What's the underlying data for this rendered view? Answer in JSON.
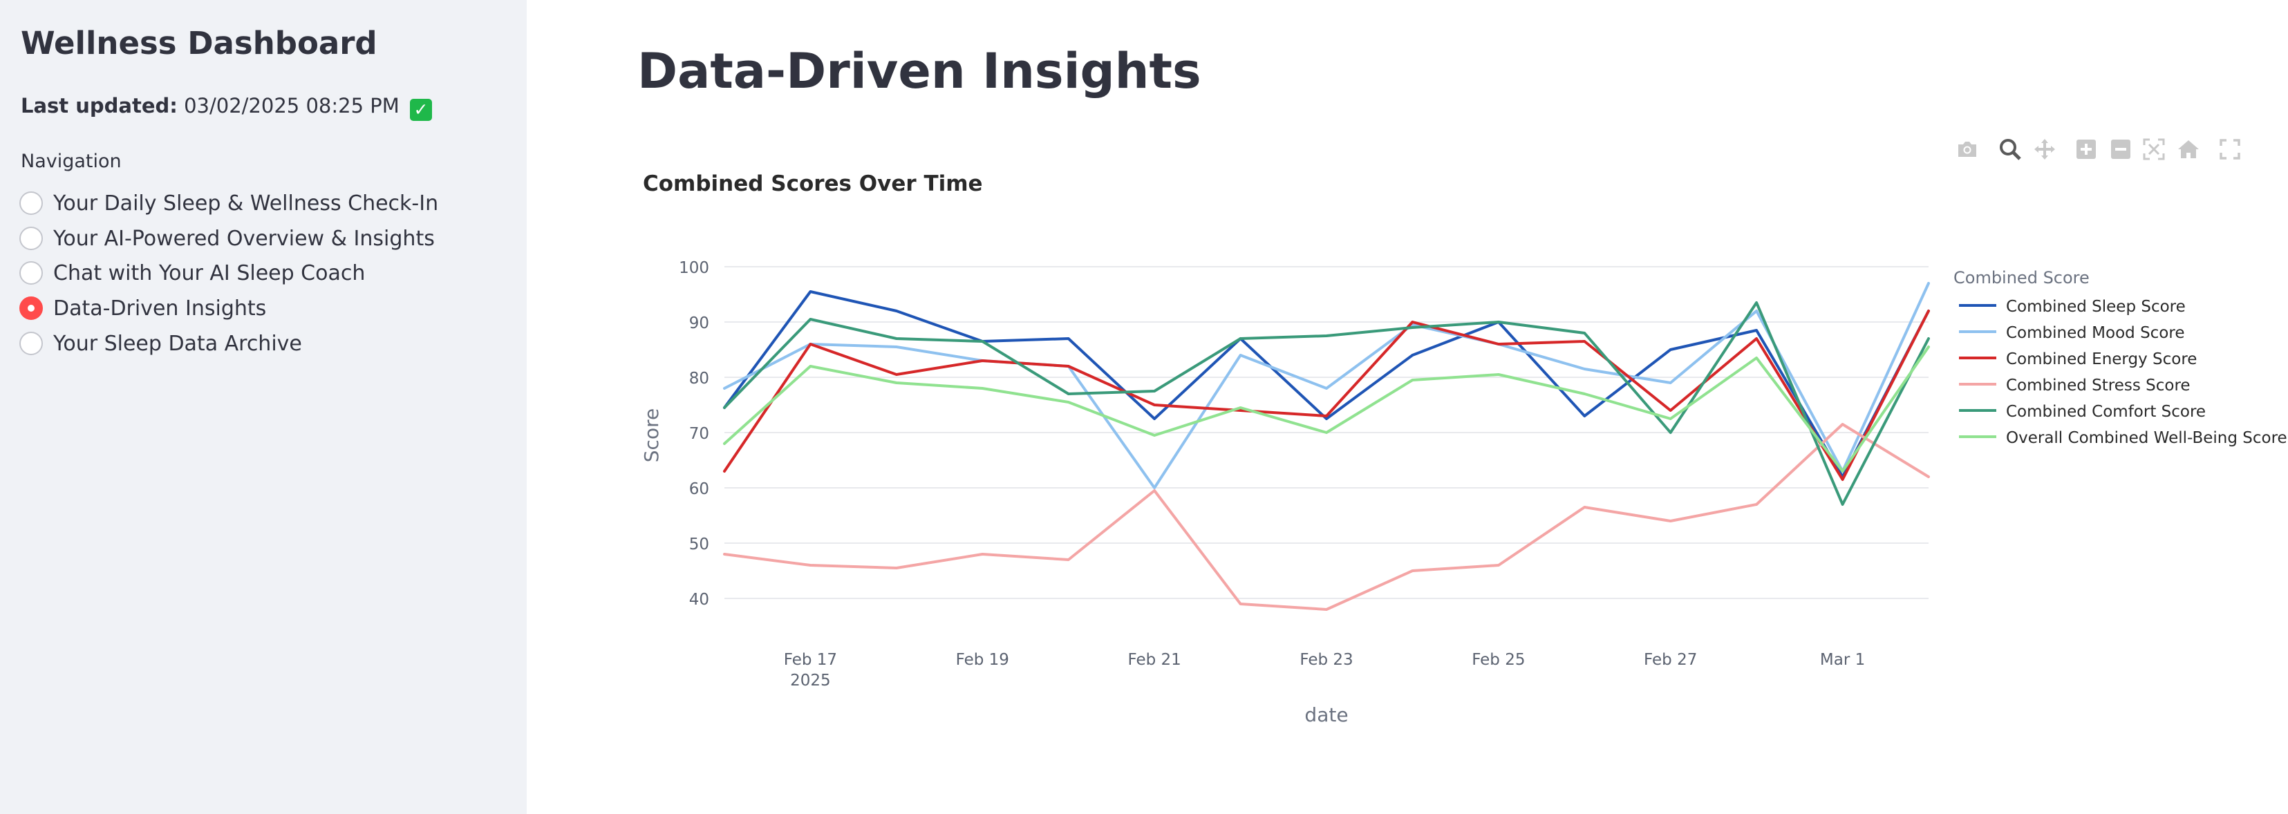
{
  "sidebar": {
    "title": "Wellness Dashboard",
    "last_updated_label": "Last updated:",
    "last_updated_value": "03/02/2025 08:25 PM",
    "navigation_label": "Navigation",
    "items": [
      {
        "label": "Your Daily Sleep & Wellness Check-In",
        "selected": false
      },
      {
        "label": "Your AI-Powered Overview & Insights",
        "selected": false
      },
      {
        "label": "Chat with Your AI Sleep Coach",
        "selected": false
      },
      {
        "label": "Data-Driven Insights",
        "selected": true
      },
      {
        "label": "Your Sleep Data Archive",
        "selected": false
      }
    ]
  },
  "main": {
    "title": "Data-Driven Insights",
    "modebar_icons": [
      "camera-icon",
      "zoom-icon",
      "pan-icon",
      "zoom-in-icon",
      "zoom-out-icon",
      "autoscale-icon",
      "reset-axes-icon",
      "fullscreen-icon"
    ]
  },
  "chart_data": {
    "type": "line",
    "title": "Combined Scores Over Time",
    "xlabel": "date",
    "ylabel": "Score",
    "legend_title": "Combined Score",
    "legend_placement": "right",
    "grid": true,
    "x": [
      "2025-02-16",
      "2025-02-17",
      "2025-02-18",
      "2025-02-19",
      "2025-02-20",
      "2025-02-21",
      "2025-02-22",
      "2025-02-23",
      "2025-02-24",
      "2025-02-25",
      "2025-02-26",
      "2025-02-27",
      "2025-02-28",
      "2025-03-01",
      "2025-03-02"
    ],
    "xticks": [
      {
        "date": "2025-02-17",
        "label": "Feb 17",
        "sublabel": "2025"
      },
      {
        "date": "2025-02-19",
        "label": "Feb 19"
      },
      {
        "date": "2025-02-21",
        "label": "Feb 21"
      },
      {
        "date": "2025-02-23",
        "label": "Feb 23"
      },
      {
        "date": "2025-02-25",
        "label": "Feb 25"
      },
      {
        "date": "2025-02-27",
        "label": "Feb 27"
      },
      {
        "date": "2025-03-01",
        "label": "Mar 1"
      }
    ],
    "yticks": [
      40,
      50,
      60,
      70,
      80,
      90,
      100
    ],
    "ylim": [
      35.5,
      103.5
    ],
    "xlim": [
      "2025-02-16",
      "2025-03-02"
    ],
    "series": [
      {
        "name": "Combined Sleep Score",
        "color": "#1f55b5",
        "values": [
          74.5,
          95.5,
          92,
          86.5,
          87,
          72.5,
          87,
          72.5,
          84,
          90,
          73,
          85,
          88.5,
          62,
          92
        ]
      },
      {
        "name": "Combined Mood Score",
        "color": "#8ec1ef",
        "values": [
          78,
          86,
          85.5,
          83,
          82,
          60,
          84,
          78,
          89.5,
          86,
          81.5,
          79,
          92,
          63,
          97
        ]
      },
      {
        "name": "Combined Energy Score",
        "color": "#d62728",
        "values": [
          63,
          86,
          80.5,
          83,
          82,
          75,
          74,
          73,
          90,
          86,
          86.5,
          74,
          87,
          61.5,
          92
        ]
      },
      {
        "name": "Combined Stress Score",
        "color": "#f4a5a5",
        "values": [
          48,
          46,
          45.5,
          48,
          47,
          59.5,
          39,
          38,
          45,
          46,
          56.5,
          54,
          57,
          71.5,
          62
        ]
      },
      {
        "name": "Combined Comfort Score",
        "color": "#3a9a7a",
        "values": [
          74.5,
          90.5,
          87,
          86.5,
          77,
          77.5,
          87,
          87.5,
          89,
          90,
          88,
          70,
          93.5,
          57,
          87
        ]
      },
      {
        "name": "Overall Combined Well-Being Score",
        "color": "#90e290",
        "values": [
          68,
          82,
          79,
          78,
          75.5,
          69.5,
          74.5,
          70,
          79.5,
          80.5,
          77,
          72.5,
          83.5,
          63,
          85.5
        ]
      }
    ]
  }
}
